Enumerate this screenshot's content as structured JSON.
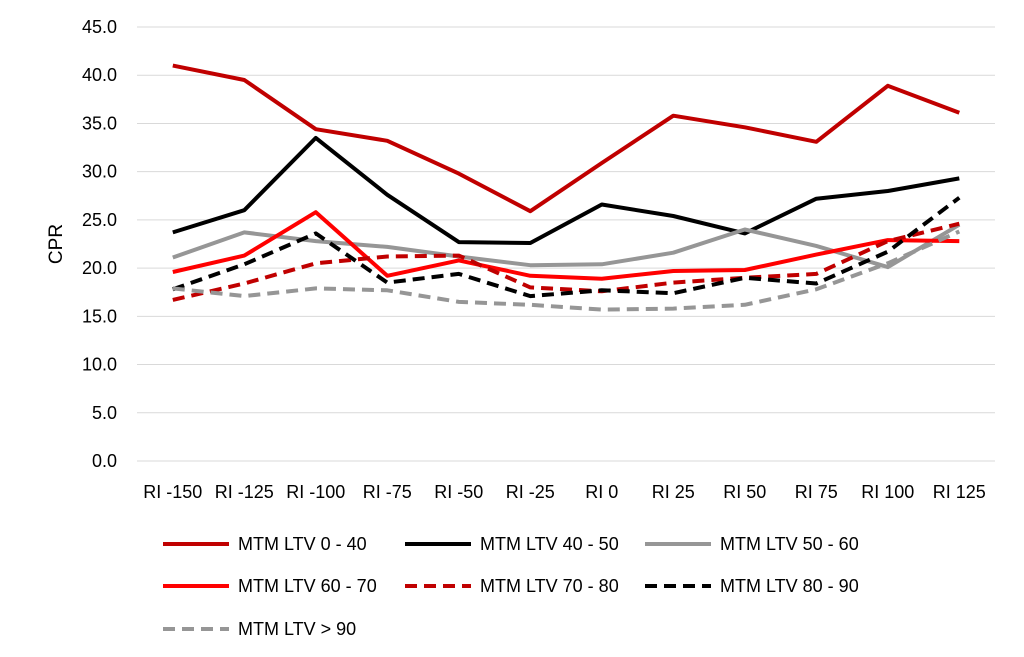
{
  "chart_data": {
    "type": "line",
    "ylabel": "CPR",
    "xlabel": "",
    "ylim": [
      0,
      45
    ],
    "yticks": [
      "0.0",
      "5.0",
      "10.0",
      "15.0",
      "20.0",
      "25.0",
      "30.0",
      "35.0",
      "40.0",
      "45.0"
    ],
    "grid": true,
    "legend_position": "bottom",
    "categories": [
      "RI -150",
      "RI -125",
      "RI -100",
      "RI -75",
      "RI -50",
      "RI -25",
      "RI 0",
      "RI 25",
      "RI 50",
      "RI 75",
      "RI 100",
      "RI 125"
    ],
    "series": [
      {
        "name": "MTM LTV 0 - 40",
        "color": "#c00000",
        "dash": "solid",
        "values": [
          41.0,
          39.5,
          34.4,
          33.2,
          29.8,
          25.9,
          30.9,
          35.8,
          34.6,
          33.1,
          38.9,
          36.1
        ]
      },
      {
        "name": "MTM LTV 40 - 50",
        "color": "#000000",
        "dash": "solid",
        "values": [
          23.7,
          26.0,
          33.5,
          27.6,
          22.7,
          22.6,
          26.6,
          25.4,
          23.6,
          27.2,
          28.0,
          29.3
        ]
      },
      {
        "name": "MTM LTV 50 - 60",
        "color": "#969696",
        "dash": "solid",
        "values": [
          21.1,
          23.7,
          22.8,
          22.2,
          21.2,
          20.3,
          20.4,
          21.6,
          24.0,
          22.3,
          20.1,
          24.5
        ]
      },
      {
        "name": "MTM LTV 60 - 70",
        "color": "#ff0000",
        "dash": "solid",
        "values": [
          19.6,
          21.3,
          25.8,
          19.2,
          20.8,
          19.2,
          18.9,
          19.7,
          19.8,
          21.4,
          22.9,
          22.8
        ]
      },
      {
        "name": "MTM LTV 70 - 80",
        "color": "#c00000",
        "dash": "dashed",
        "values": [
          16.7,
          18.4,
          20.5,
          21.2,
          21.3,
          18.0,
          17.6,
          18.5,
          19.0,
          19.4,
          22.8,
          24.6
        ]
      },
      {
        "name": "MTM LTV 80 - 90",
        "color": "#000000",
        "dash": "dashed",
        "values": [
          17.8,
          20.4,
          23.6,
          18.5,
          19.4,
          17.1,
          17.7,
          17.4,
          19.0,
          18.4,
          21.7,
          27.3
        ]
      },
      {
        "name": "MTM LTV > 90",
        "color": "#969696",
        "dash": "dashed",
        "values": [
          17.9,
          17.1,
          17.9,
          17.7,
          16.5,
          16.2,
          15.7,
          15.8,
          16.2,
          17.8,
          20.5,
          23.8
        ]
      }
    ]
  }
}
